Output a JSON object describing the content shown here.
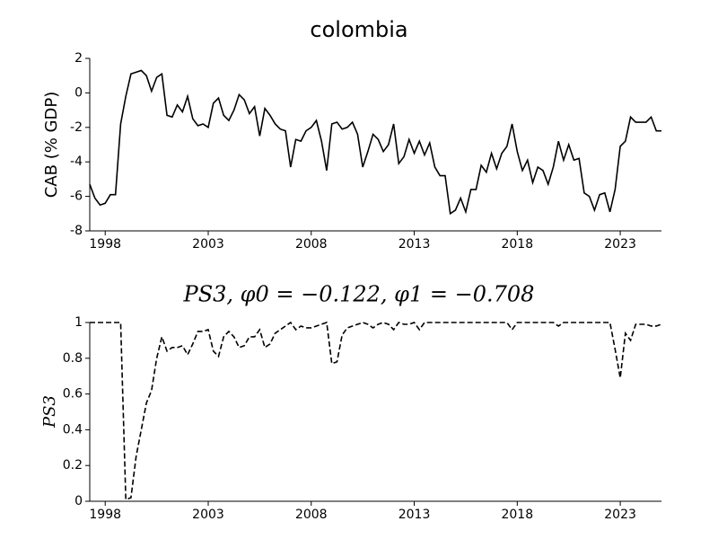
{
  "chart_data": [
    {
      "type": "line",
      "title": "colombia",
      "ylabel": "CAB (% GDP)",
      "color": "#000000",
      "linestyle": "solid",
      "x": [
        1997.25,
        1997.5,
        1997.75,
        1998,
        1998.25,
        1998.5,
        1998.75,
        1999,
        1999.25,
        1999.5,
        1999.75,
        2000,
        2000.25,
        2000.5,
        2000.75,
        2001,
        2001.25,
        2001.5,
        2001.75,
        2002,
        2002.25,
        2002.5,
        2002.75,
        2003,
        2003.25,
        2003.5,
        2003.75,
        2004,
        2004.25,
        2004.5,
        2004.75,
        2005,
        2005.25,
        2005.5,
        2005.75,
        2006,
        2006.25,
        2006.5,
        2006.75,
        2007,
        2007.25,
        2007.5,
        2007.75,
        2008,
        2008.25,
        2008.5,
        2008.75,
        2009,
        2009.25,
        2009.5,
        2009.75,
        2010,
        2010.25,
        2010.5,
        2010.75,
        2011,
        2011.25,
        2011.5,
        2011.75,
        2012,
        2012.25,
        2012.5,
        2012.75,
        2013,
        2013.25,
        2013.5,
        2013.75,
        2014,
        2014.25,
        2014.5,
        2014.75,
        2015,
        2015.25,
        2015.5,
        2015.75,
        2016,
        2016.25,
        2016.5,
        2016.75,
        2017,
        2017.25,
        2017.5,
        2017.75,
        2018,
        2018.25,
        2018.5,
        2018.75,
        2019,
        2019.25,
        2019.5,
        2019.75,
        2020,
        2020.25,
        2020.5,
        2020.75,
        2021,
        2021.25,
        2021.5,
        2021.75,
        2022,
        2022.25,
        2022.5,
        2022.75,
        2023,
        2023.25,
        2023.5,
        2023.75,
        2024,
        2024.25,
        2024.5,
        2024.75,
        2025
      ],
      "values": [
        -5.3,
        -6.1,
        -6.5,
        -6.4,
        -5.9,
        -5.9,
        -1.8,
        -0.2,
        1.1,
        1.2,
        1.3,
        1.0,
        0.1,
        0.9,
        1.1,
        -1.3,
        -1.4,
        -0.7,
        -1.1,
        -0.2,
        -1.5,
        -1.9,
        -1.8,
        -2.0,
        -0.6,
        -0.3,
        -1.3,
        -1.6,
        -1.0,
        -0.1,
        -0.4,
        -1.2,
        -0.8,
        -2.5,
        -0.9,
        -1.3,
        -1.8,
        -2.1,
        -2.2,
        -4.3,
        -2.7,
        -2.8,
        -2.2,
        -2.0,
        -1.6,
        -2.8,
        -4.5,
        -1.8,
        -1.7,
        -2.1,
        -2.0,
        -1.7,
        -2.4,
        -4.3,
        -3.4,
        -2.4,
        -2.7,
        -3.4,
        -3.0,
        -1.8,
        -4.1,
        -3.7,
        -2.7,
        -3.5,
        -2.8,
        -3.6,
        -2.9,
        -4.3,
        -4.8,
        -4.8,
        -7.0,
        -6.8,
        -6.1,
        -6.9,
        -5.6,
        -5.6,
        -4.2,
        -4.6,
        -3.5,
        -4.4,
        -3.5,
        -3.1,
        -1.8,
        -3.4,
        -4.5,
        -3.9,
        -5.2,
        -4.3,
        -4.5,
        -5.3,
        -4.3,
        -2.8,
        -3.9,
        -3.0,
        -3.9,
        -3.8,
        -5.8,
        -6.0,
        -6.8,
        -5.9,
        -5.8,
        -6.9,
        -5.6,
        -3.1,
        -2.8,
        -1.4,
        -1.7,
        -1.7,
        -1.7,
        -1.4,
        -2.2,
        -2.2
      ],
      "xlim": [
        1997.25,
        2025
      ],
      "xticks": [
        1998,
        2003,
        2008,
        2013,
        2018,
        2023
      ],
      "ylim": [
        -8,
        2
      ],
      "yticks": [
        2,
        0,
        -2,
        -4,
        -6,
        -8
      ]
    },
    {
      "type": "line",
      "title": "PS3, φ0 = −0.122, φ1 = −0.708",
      "ylabel": "PS3",
      "color": "#000000",
      "linestyle": "dashed",
      "x": [
        1997.25,
        1997.5,
        1997.75,
        1998,
        1998.25,
        1998.5,
        1998.75,
        1999,
        1999.25,
        1999.5,
        1999.75,
        2000,
        2000.25,
        2000.5,
        2000.75,
        2001,
        2001.25,
        2001.5,
        2001.75,
        2002,
        2002.25,
        2002.5,
        2002.75,
        2003,
        2003.25,
        2003.5,
        2003.75,
        2004,
        2004.25,
        2004.5,
        2004.75,
        2005,
        2005.25,
        2005.5,
        2005.75,
        2006,
        2006.25,
        2006.5,
        2006.75,
        2007,
        2007.25,
        2007.5,
        2007.75,
        2008,
        2008.25,
        2008.5,
        2008.75,
        2009,
        2009.25,
        2009.5,
        2009.75,
        2010,
        2010.25,
        2010.5,
        2010.75,
        2011,
        2011.25,
        2011.5,
        2011.75,
        2012,
        2012.25,
        2012.5,
        2012.75,
        2013,
        2013.25,
        2013.5,
        2013.75,
        2014,
        2014.25,
        2014.5,
        2014.75,
        2015,
        2015.25,
        2015.5,
        2015.75,
        2016,
        2016.25,
        2016.5,
        2016.75,
        2017,
        2017.25,
        2017.5,
        2017.75,
        2018,
        2018.25,
        2018.5,
        2018.75,
        2019,
        2019.25,
        2019.5,
        2019.75,
        2020,
        2020.25,
        2020.5,
        2020.75,
        2021,
        2021.25,
        2021.5,
        2021.75,
        2022,
        2022.25,
        2022.5,
        2022.75,
        2023,
        2023.25,
        2023.5,
        2023.75,
        2024,
        2024.25,
        2024.5,
        2024.75,
        2025
      ],
      "values": [
        1,
        1,
        1,
        1,
        1,
        1,
        1,
        0.01,
        0.02,
        0.25,
        0.4,
        0.55,
        0.62,
        0.8,
        0.92,
        0.84,
        0.86,
        0.86,
        0.87,
        0.82,
        0.88,
        0.95,
        0.95,
        0.96,
        0.84,
        0.81,
        0.92,
        0.95,
        0.92,
        0.86,
        0.87,
        0.92,
        0.92,
        0.96,
        0.86,
        0.88,
        0.94,
        0.96,
        0.98,
        1,
        0.96,
        0.98,
        0.97,
        0.97,
        0.98,
        0.99,
        1,
        0.77,
        0.78,
        0.93,
        0.97,
        0.98,
        0.99,
        1,
        0.99,
        0.97,
        0.99,
        1,
        0.99,
        0.96,
        1,
        0.99,
        0.99,
        1,
        0.96,
        1,
        1,
        1,
        1,
        1,
        1,
        1,
        1,
        1,
        1,
        1,
        1,
        1,
        1,
        1,
        1,
        1,
        0.96,
        1,
        1,
        1,
        1,
        1,
        1,
        1,
        1,
        0.98,
        1,
        1,
        1,
        1,
        1,
        1,
        1,
        1,
        1,
        1,
        0.85,
        0.69,
        0.94,
        0.9,
        0.99,
        0.99,
        0.99,
        0.98,
        0.98,
        0.99
      ],
      "xlim": [
        1997.25,
        2025
      ],
      "xticks": [
        1998,
        2003,
        2008,
        2013,
        2018,
        2023
      ],
      "ylim": [
        0,
        1
      ],
      "yticks": [
        0,
        0.2,
        0.4,
        0.6,
        0.8,
        1
      ]
    }
  ]
}
